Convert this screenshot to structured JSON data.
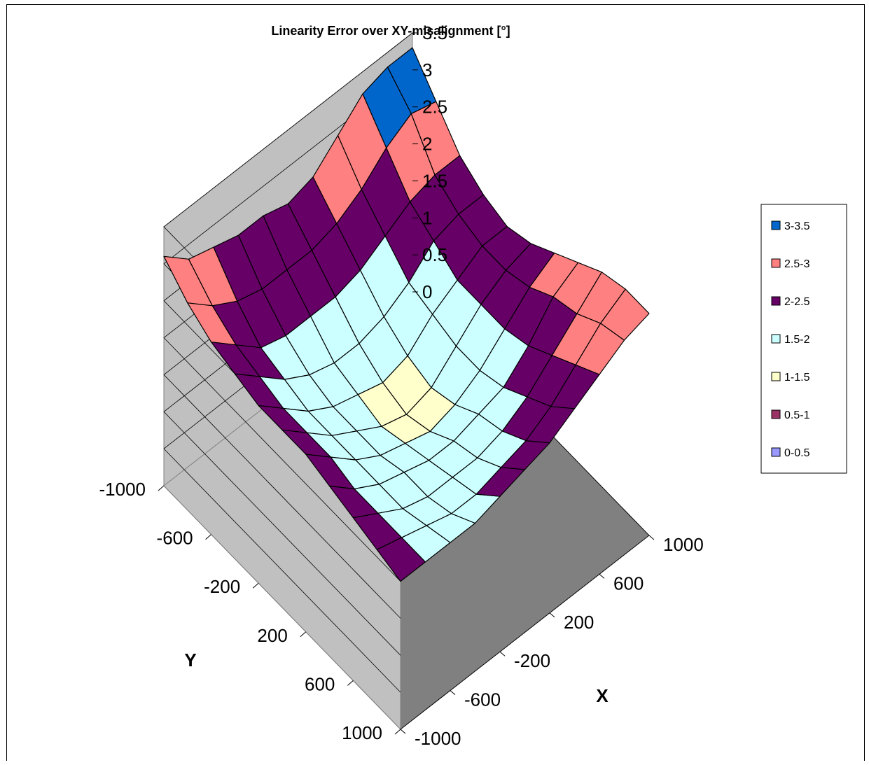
{
  "chart_data": {
    "type": "surface",
    "title": "Linearity Error over XY-misalignment [°]",
    "xlabel": "X",
    "ylabel": "Y",
    "zlabel": "",
    "x_ticks": [
      -1000,
      -600,
      -200,
      200,
      600,
      1000
    ],
    "y_ticks": [
      -1000,
      -600,
      -200,
      200,
      600,
      1000
    ],
    "z_ticks": [
      0,
      0.5,
      1,
      1.5,
      2,
      2.5,
      3,
      3.5
    ],
    "zlim": [
      0,
      3.5
    ],
    "x": [
      -1000,
      -800,
      -600,
      -400,
      -200,
      0,
      200,
      400,
      600,
      800,
      1000
    ],
    "y": [
      -1000,
      -800,
      -600,
      -400,
      -200,
      0,
      200,
      400,
      600,
      800,
      1000
    ],
    "z": [
      [
        3.1,
        2.8,
        2.7,
        2.6,
        2.6,
        2.5,
        2.6,
        2.9,
        3.2,
        3.3,
        3.3
      ],
      [
        2.8,
        2.5,
        2.3,
        2.2,
        2.2,
        2.2,
        2.3,
        2.5,
        2.8,
        3.0,
        2.9
      ],
      [
        2.6,
        2.3,
        2.0,
        1.9,
        1.9,
        1.9,
        2.0,
        2.2,
        2.4,
        2.5,
        2.5
      ],
      [
        2.5,
        2.2,
        1.9,
        1.7,
        1.6,
        1.6,
        1.7,
        1.9,
        2.2,
        2.3,
        2.3
      ],
      [
        2.4,
        2.1,
        1.8,
        1.6,
        1.5,
        1.4,
        1.5,
        1.8,
        2.0,
        2.2,
        2.2
      ],
      [
        2.4,
        2.1,
        1.8,
        1.6,
        1.4,
        1.3,
        1.4,
        1.7,
        2.0,
        2.2,
        2.3
      ],
      [
        2.4,
        2.1,
        1.8,
        1.6,
        1.5,
        1.4,
        1.5,
        1.7,
        2.0,
        2.3,
        2.5
      ],
      [
        2.3,
        2.0,
        1.8,
        1.7,
        1.6,
        1.6,
        1.7,
        1.8,
        2.1,
        2.5,
        2.7
      ],
      [
        2.2,
        2.0,
        1.8,
        1.7,
        1.7,
        1.7,
        1.8,
        2.0,
        2.3,
        2.6,
        2.9
      ],
      [
        2.1,
        2.0,
        1.9,
        1.8,
        1.8,
        1.9,
        2.0,
        2.2,
        2.5,
        2.8,
        3.0
      ],
      [
        2.0,
        2.0,
        2.0,
        2.0,
        2.1,
        2.2,
        2.3,
        2.5,
        2.7,
        2.9,
        3.0
      ]
    ],
    "legend_position": "right",
    "legend": [
      {
        "label": "3-3.5",
        "range": [
          3,
          3.5
        ],
        "color": "#0066cc"
      },
      {
        "label": "2.5-3",
        "range": [
          2.5,
          3
        ],
        "color": "#ff8080"
      },
      {
        "label": "2-2.5",
        "range": [
          2,
          2.5
        ],
        "color": "#660066"
      },
      {
        "label": "1.5-2",
        "range": [
          1.5,
          2
        ],
        "color": "#ccffff"
      },
      {
        "label": "1-1.5",
        "range": [
          1,
          1.5
        ],
        "color": "#ffffcc"
      },
      {
        "label": "0.5-1",
        "range": [
          0.5,
          1
        ],
        "color": "#993366"
      },
      {
        "label": "0-0.5",
        "range": [
          0,
          0.5
        ],
        "color": "#9999ff"
      }
    ],
    "colors": {
      "floor": "#808080",
      "walls": "#c0c0c0",
      "grid": "#000000"
    }
  }
}
